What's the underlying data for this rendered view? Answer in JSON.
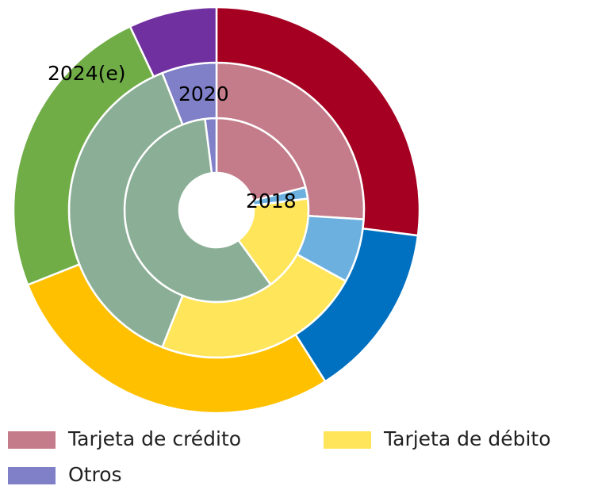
{
  "chart_data": {
    "type": "donut",
    "categories": [
      "Tarjeta de crédito",
      null,
      "Tarjeta de débito",
      null,
      "Otros"
    ],
    "series": [
      {
        "name": "2018",
        "values": [
          21,
          2,
          17,
          58,
          2
        ],
        "colors": [
          "#c47c8a",
          "#6cb0e0",
          "#ffe55a",
          "#8aae96",
          "#7f80c8"
        ]
      },
      {
        "name": "2020",
        "values": [
          26,
          7,
          23,
          38,
          6
        ],
        "colors": [
          "#c47c8a",
          "#6cb0e0",
          "#ffe55a",
          "#8aae96",
          "#7f80c8"
        ]
      },
      {
        "name": "2024(e)",
        "values": [
          27,
          14,
          28,
          24,
          7
        ],
        "colors": [
          "#a50021",
          "#0070c0",
          "#ffc000",
          "#70ad47",
          "#7030a0"
        ]
      }
    ]
  }
}
